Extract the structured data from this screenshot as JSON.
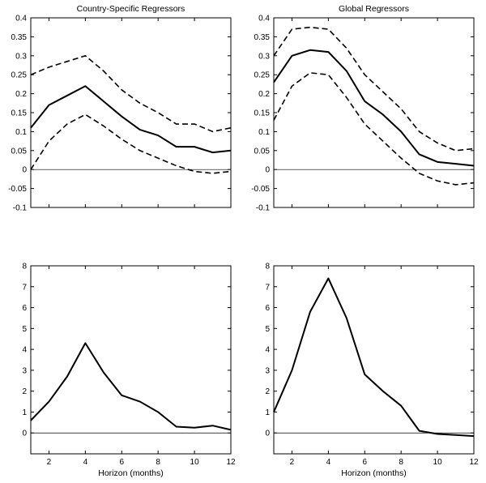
{
  "figure": {
    "background": "#ffffff",
    "line_color": "#000000"
  },
  "chart_data": [
    {
      "type": "line",
      "title": "Country-Specific Regressors",
      "xlabel": "",
      "x": [
        1,
        2,
        3,
        4,
        5,
        6,
        7,
        8,
        9,
        10,
        11,
        12
      ],
      "xlim": [
        1,
        12
      ],
      "ylim": [
        -0.1,
        0.4
      ],
      "yticks": [
        -0.1,
        -0.05,
        0,
        0.05,
        0.1,
        0.15,
        0.2,
        0.25,
        0.3,
        0.35,
        0.4
      ],
      "ytick_labels": [
        "-0.1",
        "-0.05",
        "0",
        "0.05",
        "0.1",
        "0.15",
        "0.2",
        "0.25",
        "0.3",
        "0.35",
        "0.4"
      ],
      "xticks": [
        2,
        4,
        6,
        8,
        10,
        12
      ],
      "xtick_labels": [
        "",
        "",
        "",
        "",
        "",
        ""
      ],
      "zero_line": true,
      "grid": false,
      "legend": "none",
      "series": [
        {
          "name": "impulse response (point estimate)",
          "style": "solid",
          "values": [
            0.11,
            0.17,
            0.195,
            0.22,
            0.18,
            0.14,
            0.105,
            0.09,
            0.06,
            0.06,
            0.045,
            0.05
          ]
        },
        {
          "name": "upper confidence band",
          "style": "dashed",
          "values": [
            0.25,
            0.27,
            0.285,
            0.3,
            0.26,
            0.21,
            0.175,
            0.15,
            0.12,
            0.12,
            0.1,
            0.11
          ]
        },
        {
          "name": "lower confidence band",
          "style": "dashed",
          "values": [
            0.0,
            0.075,
            0.12,
            0.145,
            0.115,
            0.08,
            0.05,
            0.03,
            0.01,
            -0.005,
            -0.01,
            -0.005
          ]
        }
      ]
    },
    {
      "type": "line",
      "title": "Global Regressors",
      "xlabel": "",
      "x": [
        1,
        2,
        3,
        4,
        5,
        6,
        7,
        8,
        9,
        10,
        11,
        12
      ],
      "xlim": [
        1,
        12
      ],
      "ylim": [
        -0.1,
        0.4
      ],
      "yticks": [
        -0.1,
        -0.05,
        0,
        0.05,
        0.1,
        0.15,
        0.2,
        0.25,
        0.3,
        0.35,
        0.4
      ],
      "ytick_labels": [
        "-0.1",
        "-0.05",
        "0",
        "0.05",
        "0.1",
        "0.15",
        "0.2",
        "0.25",
        "0.3",
        "0.35",
        "0.4"
      ],
      "xticks": [
        2,
        4,
        6,
        8,
        10,
        12
      ],
      "xtick_labels": [
        "",
        "",
        "",
        "",
        "",
        ""
      ],
      "zero_line": true,
      "grid": false,
      "legend": "none",
      "series": [
        {
          "name": "impulse response (point estimate)",
          "style": "solid",
          "values": [
            0.23,
            0.3,
            0.315,
            0.31,
            0.26,
            0.18,
            0.145,
            0.1,
            0.04,
            0.02,
            0.015,
            0.01
          ]
        },
        {
          "name": "upper confidence band",
          "style": "dashed",
          "values": [
            0.3,
            0.37,
            0.375,
            0.37,
            0.32,
            0.25,
            0.205,
            0.16,
            0.1,
            0.07,
            0.05,
            0.055
          ]
        },
        {
          "name": "lower confidence band",
          "style": "dashed",
          "values": [
            0.13,
            0.22,
            0.255,
            0.25,
            0.19,
            0.12,
            0.075,
            0.03,
            -0.01,
            -0.03,
            -0.04,
            -0.035
          ]
        }
      ]
    },
    {
      "type": "line",
      "title": "",
      "xlabel": "Horizon (months)",
      "x": [
        1,
        2,
        3,
        4,
        5,
        6,
        7,
        8,
        9,
        10,
        11,
        12
      ],
      "xlim": [
        1,
        12
      ],
      "ylim": [
        -1,
        8
      ],
      "yticks": [
        0,
        1,
        2,
        3,
        4,
        5,
        6,
        7,
        8
      ],
      "ytick_labels": [
        "0",
        "1",
        "2",
        "3",
        "4",
        "5",
        "6",
        "7",
        "8"
      ],
      "xticks": [
        2,
        4,
        6,
        8,
        10,
        12
      ],
      "xtick_labels": [
        "2",
        "4",
        "6",
        "8",
        "10",
        "12"
      ],
      "zero_line": true,
      "grid": false,
      "legend": "none",
      "series": [
        {
          "name": "impulse response (point estimate)",
          "style": "solid",
          "values": [
            0.6,
            1.5,
            2.7,
            4.3,
            2.9,
            1.8,
            1.5,
            1.0,
            0.3,
            0.25,
            0.35,
            0.15
          ]
        }
      ]
    },
    {
      "type": "line",
      "title": "",
      "xlabel": "Horizon (months)",
      "x": [
        1,
        2,
        3,
        4,
        5,
        6,
        7,
        8,
        9,
        10,
        11,
        12
      ],
      "xlim": [
        1,
        12
      ],
      "ylim": [
        -1,
        8
      ],
      "yticks": [
        0,
        1,
        2,
        3,
        4,
        5,
        6,
        7,
        8
      ],
      "ytick_labels": [
        "0",
        "1",
        "2",
        "3",
        "4",
        "5",
        "6",
        "7",
        "8"
      ],
      "xticks": [
        2,
        4,
        6,
        8,
        10,
        12
      ],
      "xtick_labels": [
        "2",
        "4",
        "6",
        "8",
        "10",
        "12"
      ],
      "zero_line": true,
      "grid": false,
      "legend": "none",
      "series": [
        {
          "name": "impulse response (point estimate)",
          "style": "solid",
          "values": [
            1.0,
            3.0,
            5.8,
            7.4,
            5.5,
            2.8,
            2.0,
            1.3,
            0.1,
            -0.05,
            -0.1,
            -0.15
          ]
        }
      ]
    }
  ]
}
